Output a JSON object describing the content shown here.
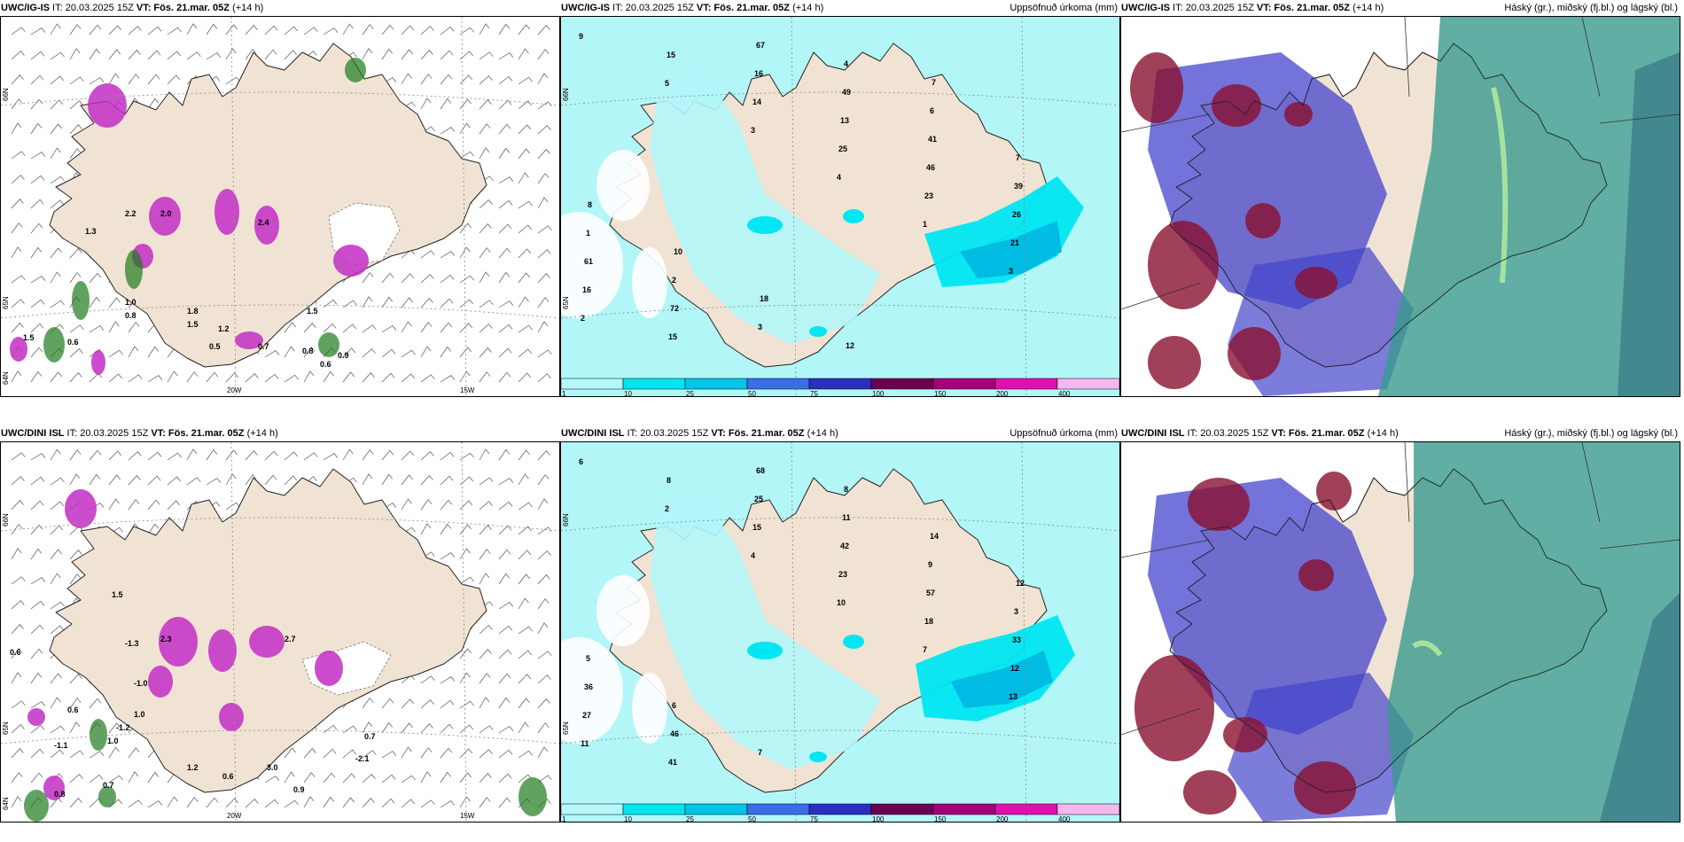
{
  "panels": [
    {
      "id": "top-left",
      "model_bold": "UWC/IG-IS",
      "header_rest": " IT: 20.03.2025 15Z ",
      "vt_bold": "VT: Fös. 21.mar. 05Z",
      "lead": " (+14 h)",
      "right_title": "",
      "lat_labels": [
        "66N",
        "65N",
        "64N"
      ],
      "lon_labels": [
        "20W",
        "15W"
      ],
      "values": [
        "1.3",
        "2.2",
        "2.0",
        "2.4",
        "1.5",
        "0.6",
        "1.0",
        "1.8",
        "0.8",
        "1.5",
        "1.2",
        "0.5",
        "0.7",
        "0.8",
        "1.5",
        "0.9",
        "0.6"
      ]
    },
    {
      "id": "top-middle",
      "model_bold": "UWC/IG-IS",
      "header_rest": " IT: 20.03.2025 15Z ",
      "vt_bold": "VT: Fös. 21.mar. 05Z",
      "lead": " (+14 h)",
      "right_title": "Uppsöfnuð úrkoma (mm)",
      "lat_labels": [
        "66N",
        "65N"
      ],
      "lon_labels": [],
      "values": [
        "9",
        "5",
        "3",
        "4",
        "1",
        "3",
        "2",
        "15",
        "14",
        "25",
        "23",
        "21",
        "16",
        "15",
        "16",
        "13",
        "46",
        "26",
        "61",
        "72",
        "67",
        "49",
        "41",
        "39",
        "1",
        "2",
        "3",
        "4",
        "6",
        "7",
        "8",
        "10",
        "18",
        "12",
        "7"
      ]
    },
    {
      "id": "top-right",
      "model_bold": "UWC/IG-IS",
      "header_rest": " IT: 20.03.2025 15Z ",
      "vt_bold": "VT: Fös. 21.mar. 05Z",
      "lead": " (+14 h)",
      "right_title": "Háský (gr.), miðský (fj.bl.) og lágský (bl.)",
      "lat_labels": [],
      "lon_labels": [],
      "values": []
    },
    {
      "id": "bottom-left",
      "model_bold": "UWC/DINI ISL",
      "header_rest": " IT: 20.03.2025 15Z ",
      "vt_bold": "VT: Fös. 21.mar. 05Z",
      "lead": " (+14 h)",
      "right_title": "",
      "lat_labels": [
        "66N",
        "65N",
        "64N"
      ],
      "lon_labels": [
        "20W",
        "15W"
      ],
      "values": [
        "0.6",
        "1.5",
        "2.3",
        "2.7",
        "-1.0",
        "1.0",
        "-1.2",
        "0.6",
        "-1.1",
        "1.0",
        "0.7",
        "0.8",
        "1.2",
        "0.6",
        "0.9",
        "-2.1",
        "0.7",
        "-1.3",
        "3.0"
      ]
    },
    {
      "id": "bottom-middle",
      "model_bold": "UWC/DINI ISL",
      "header_rest": " IT: 20.03.2025 15Z ",
      "vt_bold": "VT: Fös. 21.mar. 05Z",
      "lead": " (+14 h)",
      "right_title": "Uppsöfnuð úrkoma (mm)",
      "lat_labels": [
        "66N",
        "65N"
      ],
      "lon_labels": [],
      "values": [
        "6",
        "2",
        "4",
        "10",
        "7",
        "13",
        "11",
        "8",
        "15",
        "23",
        "18",
        "12",
        "27",
        "41",
        "25",
        "42",
        "57",
        "33",
        "36",
        "46",
        "68",
        "11",
        "9",
        "3",
        "5",
        "6",
        "7",
        "8",
        "14",
        "12"
      ]
    },
    {
      "id": "bottom-right",
      "model_bold": "UWC/DINI ISL",
      "header_rest": " IT: 20.03.2025 15Z ",
      "vt_bold": "VT: Fös. 21.mar. 05Z",
      "lead": " (+14 h)",
      "right_title": "Háský (gr.), miðský (fj.bl.) og lágský (bl.)",
      "lat_labels": [],
      "lon_labels": [],
      "values": []
    }
  ],
  "colorbar": {
    "ticks": [
      "1",
      "10",
      "25",
      "50",
      "75",
      "100",
      "150",
      "200",
      "400"
    ],
    "colors": [
      "#b5f7fa",
      "#00e5ef",
      "#00c4e8",
      "#3a6ee8",
      "#2a2fc0",
      "#6a0050",
      "#a4007a",
      "#e010b0",
      "#f5b8ee"
    ]
  },
  "colors": {
    "land": "#f1e3d3",
    "precip_bg": "#b3f6f8",
    "cyan": "#00e6f2",
    "magenta": "#c22ec6",
    "green": "#1e7a1e",
    "high_cloud": "#3a9a8e",
    "mid_cloud": "#4444cc",
    "low_cloud": "#8a1030"
  }
}
